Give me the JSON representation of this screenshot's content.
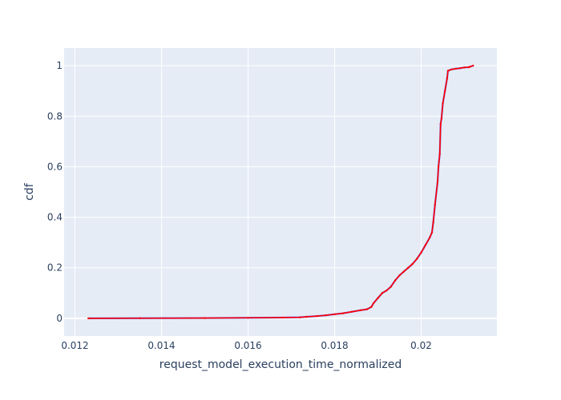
{
  "chart_data": {
    "type": "line",
    "title": "",
    "xlabel": "request_model_execution_time_normalized",
    "ylabel": "cdf",
    "xlim": [
      0.01175,
      0.02175
    ],
    "ylim": [
      -0.07,
      1.07
    ],
    "grid": true,
    "legend": "none",
    "colors": {
      "plot_bg": "#e5ecf6",
      "grid": "#ffffff",
      "line": "#ff0000",
      "marker": "#636efa",
      "text": "#2a3f5f"
    },
    "x_ticks": [
      0.012,
      0.014,
      0.016,
      0.018,
      0.02
    ],
    "x_tick_labels": [
      "0.012",
      "0.014",
      "0.016",
      "0.018",
      "0.02"
    ],
    "y_ticks": [
      0,
      0.2,
      0.4,
      0.6,
      0.8,
      1
    ],
    "y_tick_labels": [
      "0",
      "0.2",
      "0.4",
      "0.6",
      "0.8",
      "1"
    ],
    "series": [
      {
        "x": [
          0.01231,
          0.0135,
          0.015,
          0.016,
          0.0168,
          0.0172,
          0.01735,
          0.0176,
          0.0178,
          0.018,
          0.0182,
          0.0184,
          0.0186,
          0.01875,
          0.01885,
          0.0189,
          0.019,
          0.0191,
          0.0192,
          0.0193,
          0.0194,
          0.0195,
          0.0196,
          0.0197,
          0.0198,
          0.0199,
          0.02,
          0.0201,
          0.0202,
          0.02025,
          0.02028,
          0.02032,
          0.02038,
          0.0204,
          0.02043,
          0.02045,
          0.02047,
          0.0205,
          0.02055,
          0.0206,
          0.02062,
          0.0207,
          0.0208,
          0.0209,
          0.021,
          0.0211,
          0.02113,
          0.0212
        ],
        "y": [
          0.0,
          0.0005,
          0.001,
          0.002,
          0.003,
          0.004,
          0.006,
          0.009,
          0.012,
          0.016,
          0.02,
          0.026,
          0.032,
          0.036,
          0.045,
          0.06,
          0.08,
          0.1,
          0.11,
          0.125,
          0.15,
          0.17,
          0.185,
          0.2,
          0.215,
          0.235,
          0.26,
          0.29,
          0.32,
          0.34,
          0.38,
          0.45,
          0.54,
          0.6,
          0.65,
          0.77,
          0.79,
          0.85,
          0.9,
          0.95,
          0.98,
          0.985,
          0.988,
          0.99,
          0.993,
          0.994,
          0.996,
          1.0
        ]
      }
    ]
  }
}
